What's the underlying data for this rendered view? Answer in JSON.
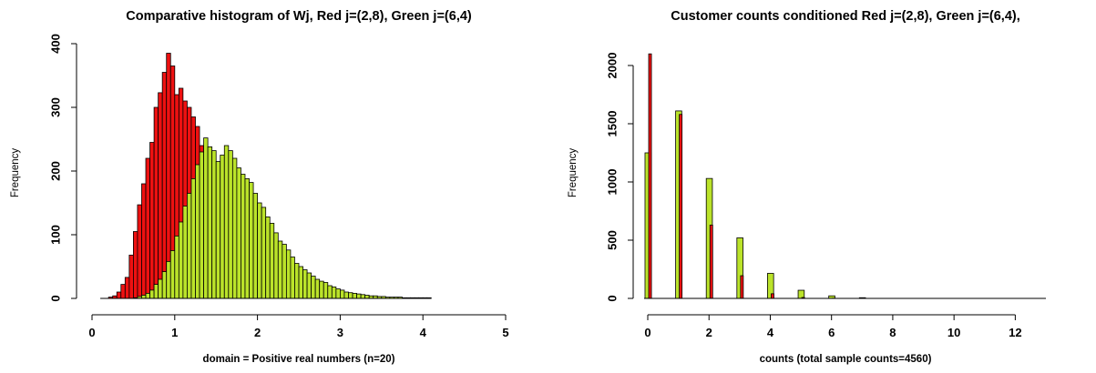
{
  "colors": {
    "red": "#ee1111",
    "green": "#bbe32a",
    "border": "#000000"
  },
  "chart_data": [
    {
      "type": "bar",
      "subtype": "overlaid-histogram",
      "title": "Comparative histogram of Wj, Red j=(2,8), Green j=(6,4)",
      "xlabel": "domain = Positive real numbers (n=20)",
      "ylabel": "Frequency",
      "xlim": [
        0,
        5
      ],
      "ylim": [
        0,
        400
      ],
      "xticks": [
        "0",
        "1",
        "2",
        "3",
        "4",
        "5"
      ],
      "yticks": [
        "0",
        "100",
        "200",
        "300",
        "400"
      ],
      "bin_width": 0.05,
      "bin_start": 0.1,
      "grid": false,
      "series": [
        {
          "color": "red",
          "values": [
            0,
            0,
            2,
            4,
            10,
            22,
            33,
            68,
            105,
            147,
            180,
            220,
            245,
            300,
            323,
            355,
            385,
            365,
            320,
            330,
            310,
            300,
            285,
            270,
            240,
            210,
            180,
            155,
            128,
            100,
            95,
            90,
            75,
            70,
            60,
            50,
            45,
            38,
            30,
            25,
            22,
            18,
            15,
            12,
            10,
            10,
            8,
            8,
            6,
            6,
            5,
            5,
            5,
            4,
            4,
            3,
            3,
            2,
            2,
            2,
            2,
            1,
            1,
            1,
            1,
            1,
            1,
            0,
            1,
            0,
            0,
            0,
            1,
            0,
            0,
            0,
            0,
            0,
            0,
            0
          ]
        },
        {
          "color": "green",
          "values": [
            0,
            0,
            0,
            0,
            0,
            0,
            0,
            0,
            1,
            3,
            5,
            8,
            13,
            22,
            30,
            42,
            58,
            75,
            98,
            120,
            145,
            165,
            188,
            210,
            230,
            252,
            238,
            232,
            215,
            225,
            240,
            232,
            220,
            205,
            195,
            188,
            182,
            165,
            150,
            143,
            128,
            118,
            103,
            90,
            85,
            76,
            65,
            55,
            50,
            45,
            40,
            35,
            30,
            27,
            25,
            20,
            18,
            15,
            13,
            10,
            9,
            8,
            7,
            6,
            5,
            4,
            4,
            3,
            3,
            2,
            2,
            2,
            2,
            1,
            1,
            1,
            1,
            1,
            1,
            1
          ]
        }
      ]
    },
    {
      "type": "bar",
      "subtype": "overlaid-count-bars",
      "title": "Customer counts conditioned Red j=(2,8), Green j=(6,4),",
      "xlabel": "counts  (total sample counts=4560)",
      "ylabel": "Frequency",
      "xlim": [
        0,
        13
      ],
      "ylim": [
        0,
        2000
      ],
      "xticks": [
        "0",
        "2",
        "4",
        "6",
        "8",
        "10",
        "12"
      ],
      "yticks": [
        "0",
        "500",
        "1000",
        "1500",
        "2000"
      ],
      "grid": false,
      "x": [
        0,
        1,
        2,
        3,
        4,
        5,
        6,
        7
      ],
      "series": [
        {
          "color": "green",
          "values": [
            1250,
            1610,
            1030,
            520,
            215,
            70,
            22,
            6
          ]
        },
        {
          "color": "red",
          "values": [
            2100,
            1580,
            630,
            195,
            40,
            8,
            2,
            1
          ]
        }
      ]
    }
  ]
}
